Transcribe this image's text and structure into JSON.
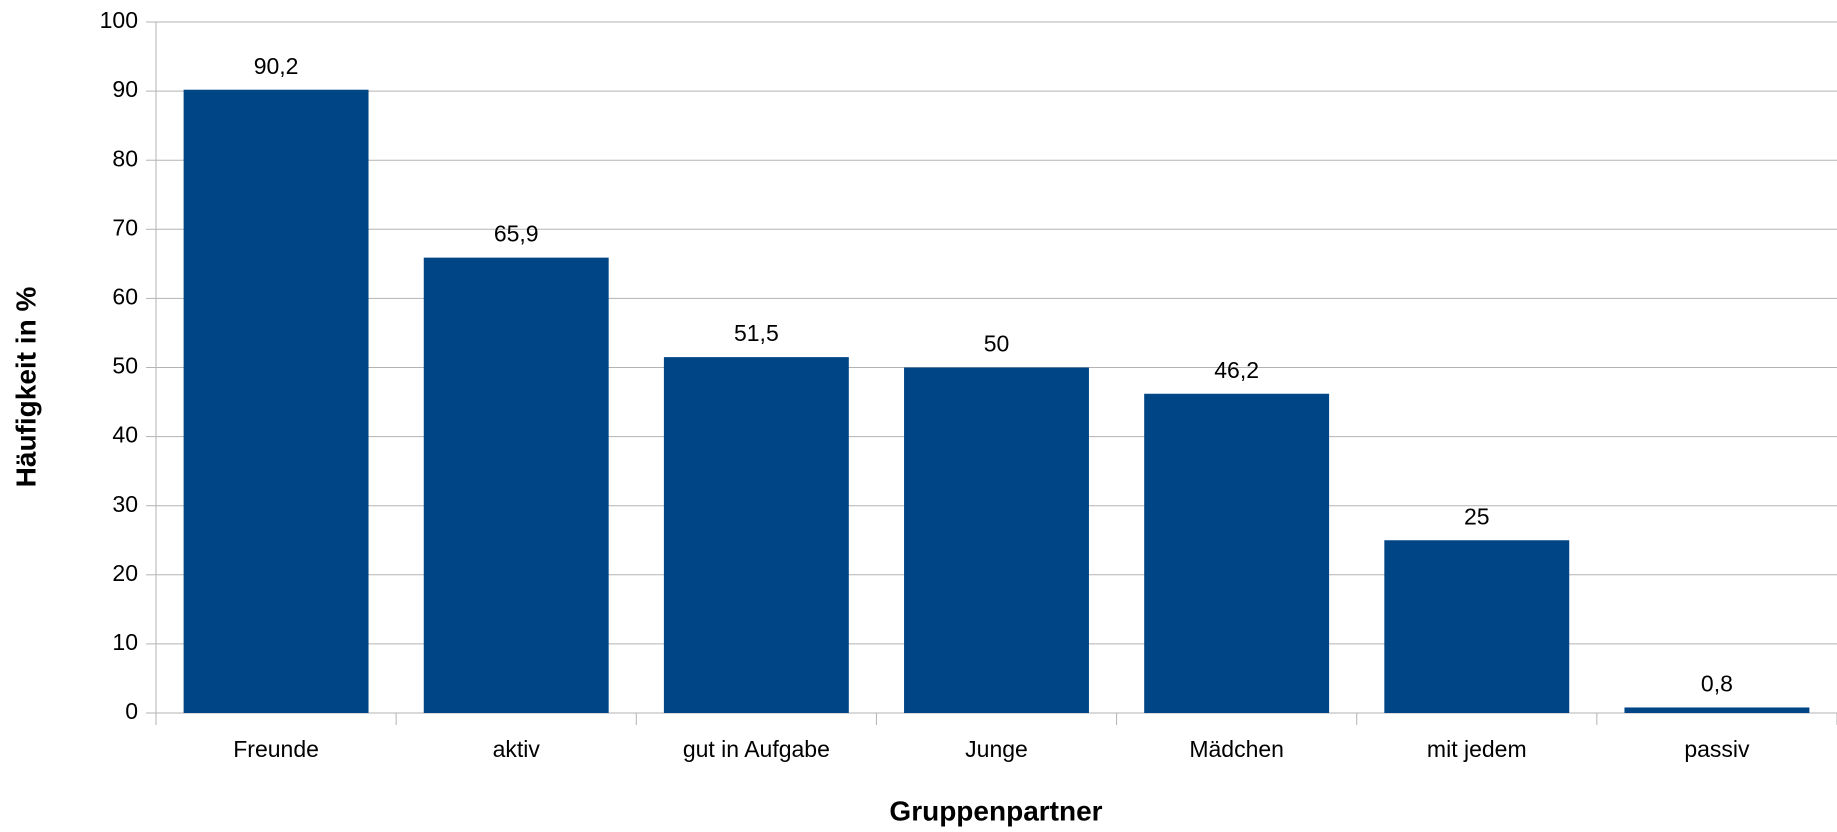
{
  "chart_data": {
    "type": "bar",
    "x_label": "Gruppenpartner",
    "y_label": "Häufigkeit in %",
    "categories": [
      "Freunde",
      "aktiv",
      "gut in Aufgabe",
      "Junge",
      "Mädchen",
      "mit jedem",
      "passiv"
    ],
    "values": [
      90.2,
      65.9,
      51.5,
      50,
      46.2,
      25,
      0.8
    ],
    "value_labels": [
      "90,2",
      "65,9",
      "51,5",
      "50",
      "46,2",
      "25",
      "0,8"
    ],
    "color": "#004586",
    "ylim": [
      0,
      100
    ],
    "yticks": [
      0,
      10,
      20,
      30,
      40,
      50,
      60,
      70,
      80,
      90,
      100
    ],
    "grid": true
  }
}
